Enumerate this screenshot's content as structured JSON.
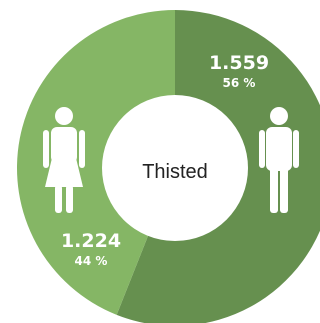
{
  "chart_data": {
    "type": "pie",
    "center_label": "Thisted",
    "slices": [
      {
        "name": "male",
        "icon": "male-icon",
        "value_label": "1.559",
        "value": 1559,
        "percent": 56,
        "percent_label": "56 %",
        "color": "#66904F"
      },
      {
        "name": "female",
        "icon": "female-icon",
        "value_label": "1.224",
        "value": 1224,
        "percent": 44,
        "percent_label": "44 %",
        "color": "#85B665"
      }
    ]
  }
}
